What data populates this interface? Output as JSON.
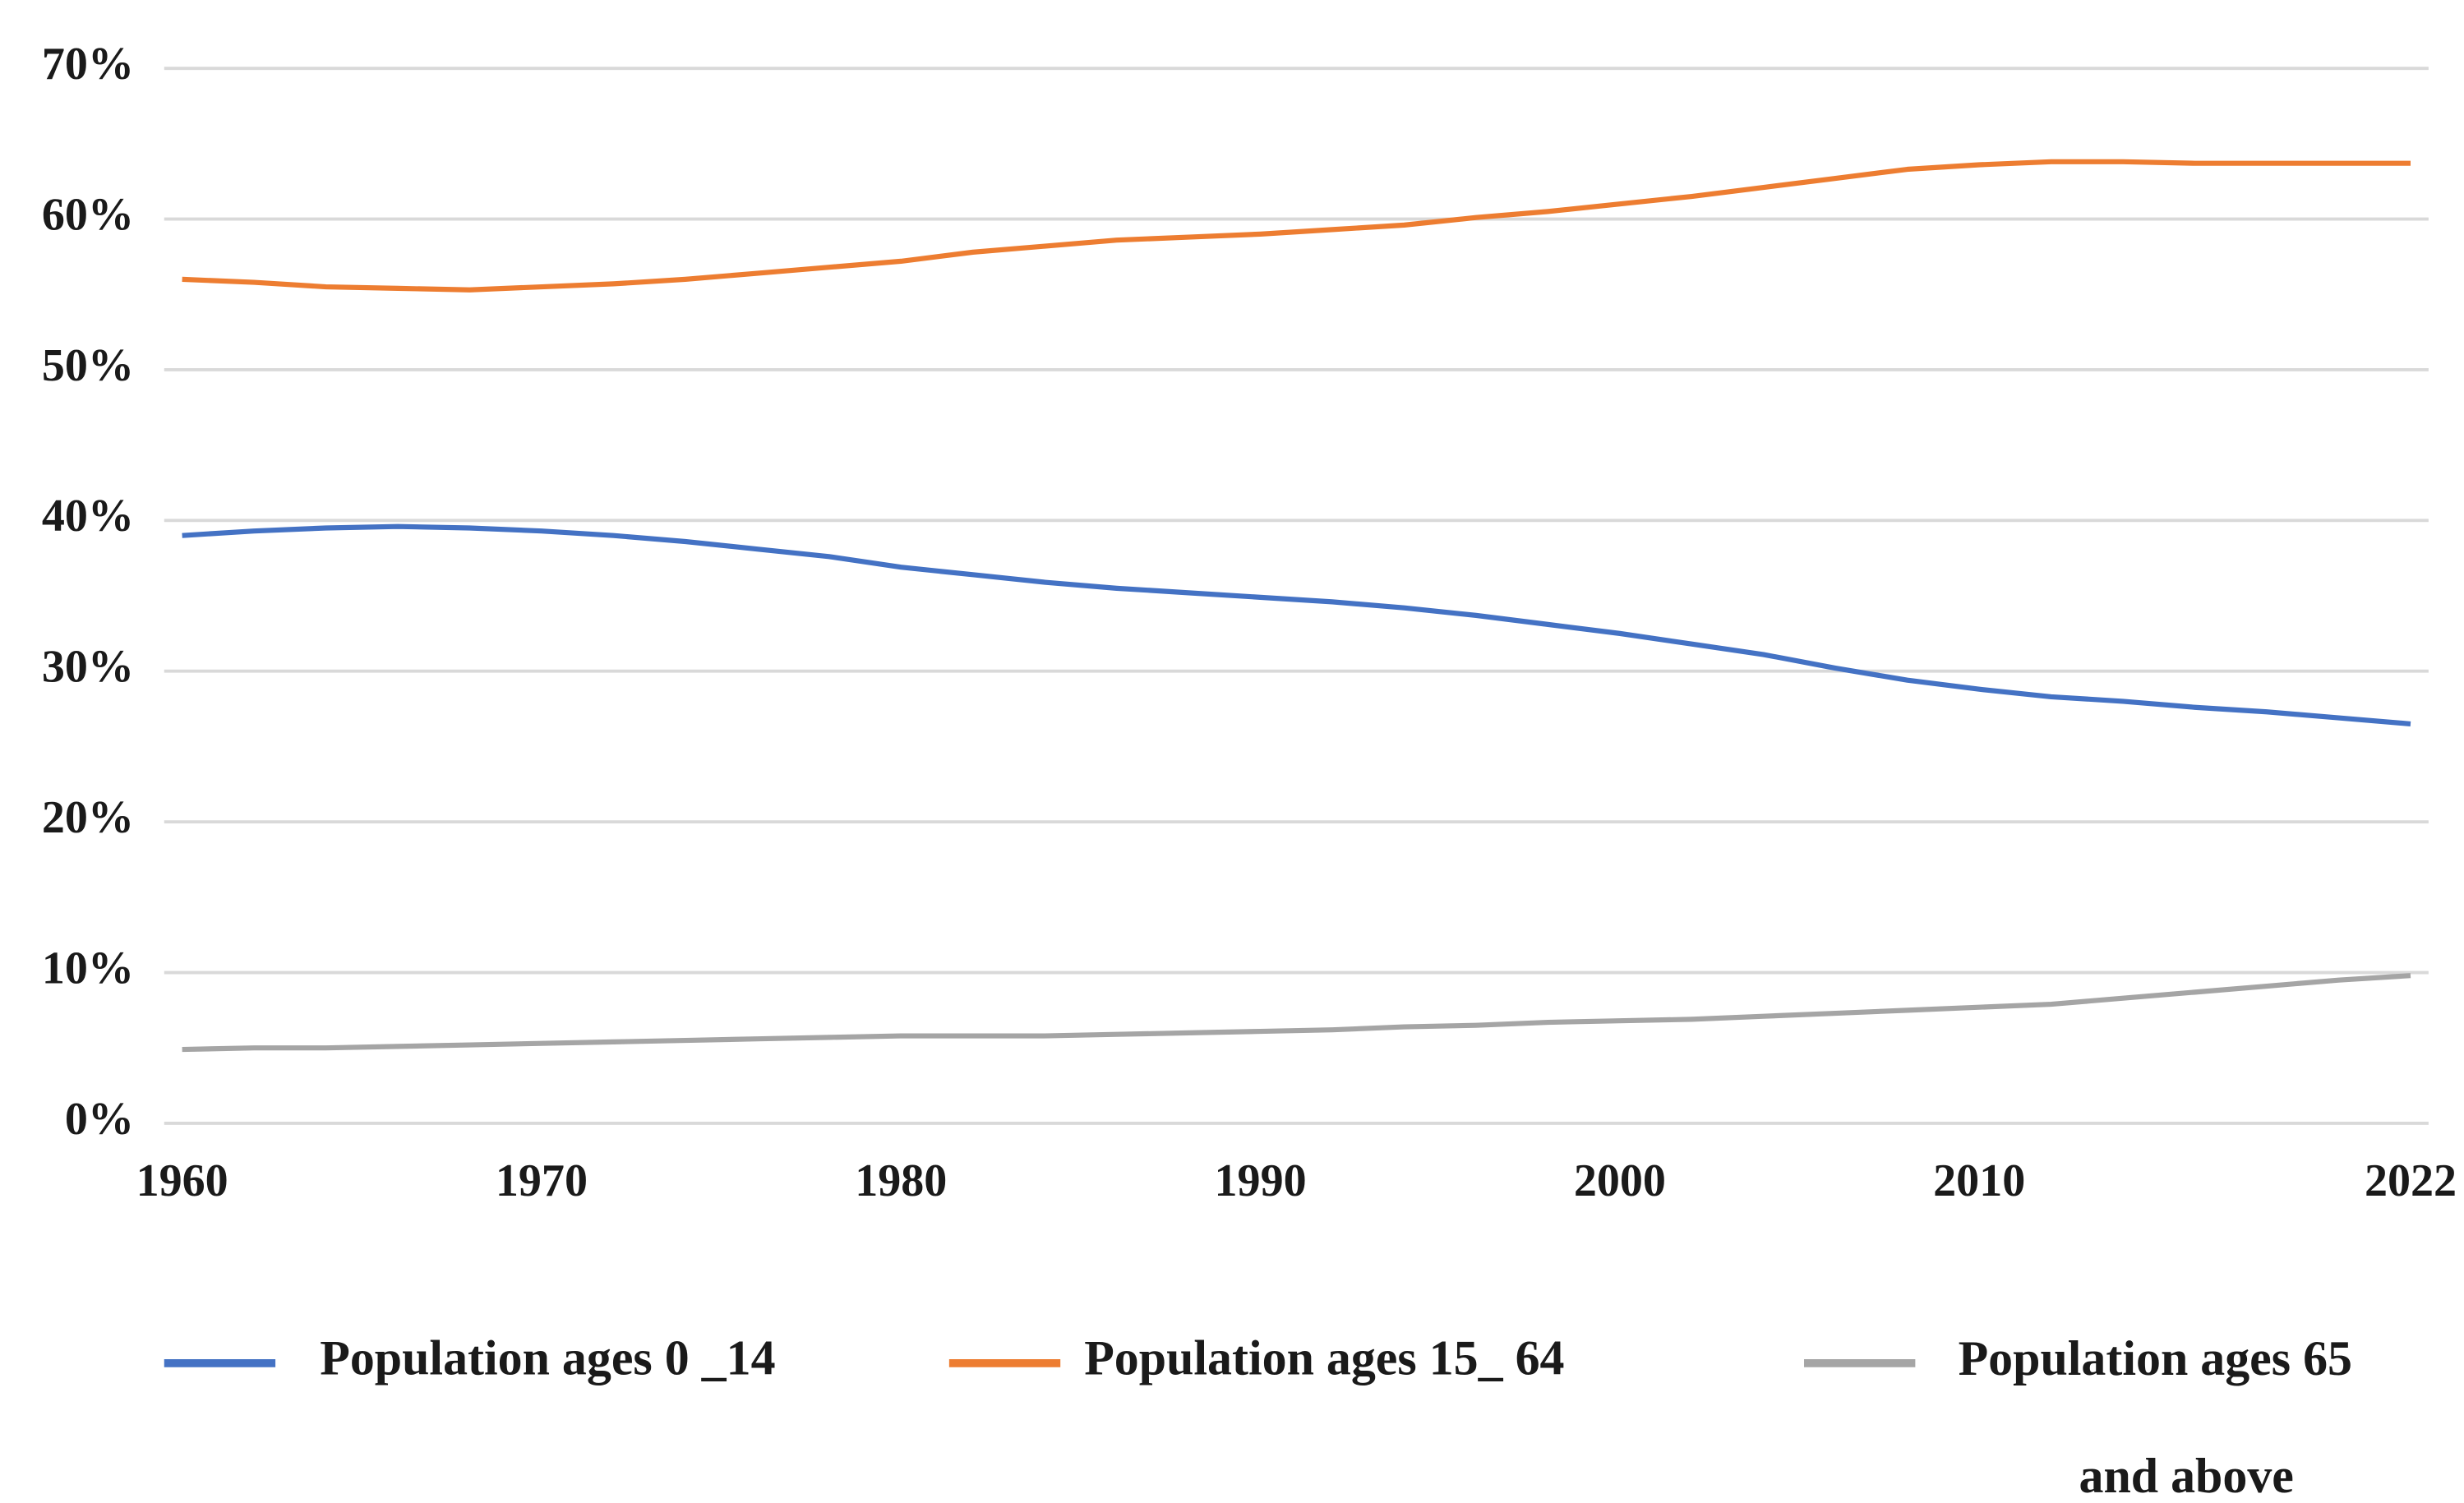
{
  "chart_data": {
    "type": "line",
    "x": [
      1960,
      1962,
      1964,
      1966,
      1968,
      1970,
      1972,
      1974,
      1976,
      1978,
      1980,
      1982,
      1984,
      1986,
      1988,
      1990,
      1992,
      1994,
      1996,
      1998,
      2000,
      2002,
      2004,
      2006,
      2008,
      2010,
      2012,
      2014,
      2016,
      2018,
      2020,
      2022
    ],
    "series": [
      {
        "name": "Population ages 0 _14",
        "color": "#4472c4",
        "values": [
          39.0,
          39.3,
          39.5,
          39.6,
          39.5,
          39.3,
          39.0,
          38.6,
          38.1,
          37.6,
          36.9,
          36.4,
          35.9,
          35.5,
          35.2,
          34.9,
          34.6,
          34.2,
          33.7,
          33.1,
          32.5,
          31.8,
          31.1,
          30.2,
          29.4,
          28.8,
          28.3,
          28.0,
          27.6,
          27.3,
          26.9,
          26.5
        ]
      },
      {
        "name": "Population ages 15_ 64",
        "color": "#ed7d31",
        "values": [
          56.0,
          55.8,
          55.5,
          55.4,
          55.3,
          55.5,
          55.7,
          56.0,
          56.4,
          56.8,
          57.2,
          57.8,
          58.2,
          58.6,
          58.8,
          59.0,
          59.3,
          59.6,
          60.1,
          60.5,
          61.0,
          61.5,
          62.1,
          62.7,
          63.3,
          63.6,
          63.8,
          63.8,
          63.7,
          63.7,
          63.7,
          63.7
        ]
      },
      {
        "name": "Population ages 65 and above",
        "color": "#a5a5a5",
        "values": [
          4.9,
          5.0,
          5.0,
          5.1,
          5.2,
          5.3,
          5.4,
          5.5,
          5.6,
          5.7,
          5.8,
          5.8,
          5.8,
          5.9,
          6.0,
          6.1,
          6.2,
          6.4,
          6.5,
          6.7,
          6.8,
          6.9,
          7.1,
          7.3,
          7.5,
          7.7,
          7.9,
          8.3,
          8.7,
          9.1,
          9.5,
          9.8
        ]
      }
    ],
    "xlim": [
      1959.5,
      2022.5
    ],
    "xticks": [
      1960,
      1970,
      1980,
      1990,
      2000,
      2010,
      2022
    ],
    "ylim": [
      0,
      70
    ],
    "yticks": [
      {
        "value": 0,
        "label": "0%"
      },
      {
        "value": 10,
        "label": "10%"
      },
      {
        "value": 20,
        "label": "20%"
      },
      {
        "value": 30,
        "label": "30%"
      },
      {
        "value": 40,
        "label": "40%"
      },
      {
        "value": 50,
        "label": "50%"
      },
      {
        "value": 60,
        "label": "60%"
      },
      {
        "value": 70,
        "label": "70%"
      }
    ],
    "grid": true,
    "legend": "bottom"
  }
}
